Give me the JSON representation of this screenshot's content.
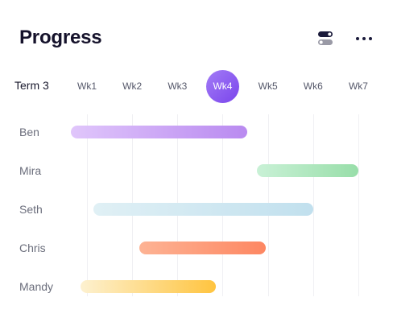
{
  "header": {
    "title": "Progress",
    "toggle_icon": "toggle-switch-icon",
    "more_icon": "more-dots-icon"
  },
  "timeline": {
    "term_label": "Term 3",
    "weeks": [
      "Wk1",
      "Wk2",
      "Wk3",
      "Wk4",
      "Wk5",
      "Wk6",
      "Wk7"
    ],
    "active_week": "Wk4"
  },
  "rows": [
    {
      "name": "Ben",
      "start_week": 0.65,
      "end_week": 4.55,
      "color_start": "#e0c6fb",
      "color_end": "#b98af0"
    },
    {
      "name": "Mira",
      "start_week": 4.75,
      "end_week": 7.0,
      "color_start": "#c9f1d6",
      "color_end": "#98dea9"
    },
    {
      "name": "Seth",
      "start_week": 1.15,
      "end_week": 6.0,
      "color_start": "#e0f0f5",
      "color_end": "#c1e0ee"
    },
    {
      "name": "Chris",
      "start_week": 2.15,
      "end_week": 4.95,
      "color_start": "#fdb394",
      "color_end": "#fd8762"
    },
    {
      "name": "Mandy",
      "start_week": 0.85,
      "end_week": 3.85,
      "color_start": "#fdf1d0",
      "color_end": "#ffc43f"
    }
  ]
}
